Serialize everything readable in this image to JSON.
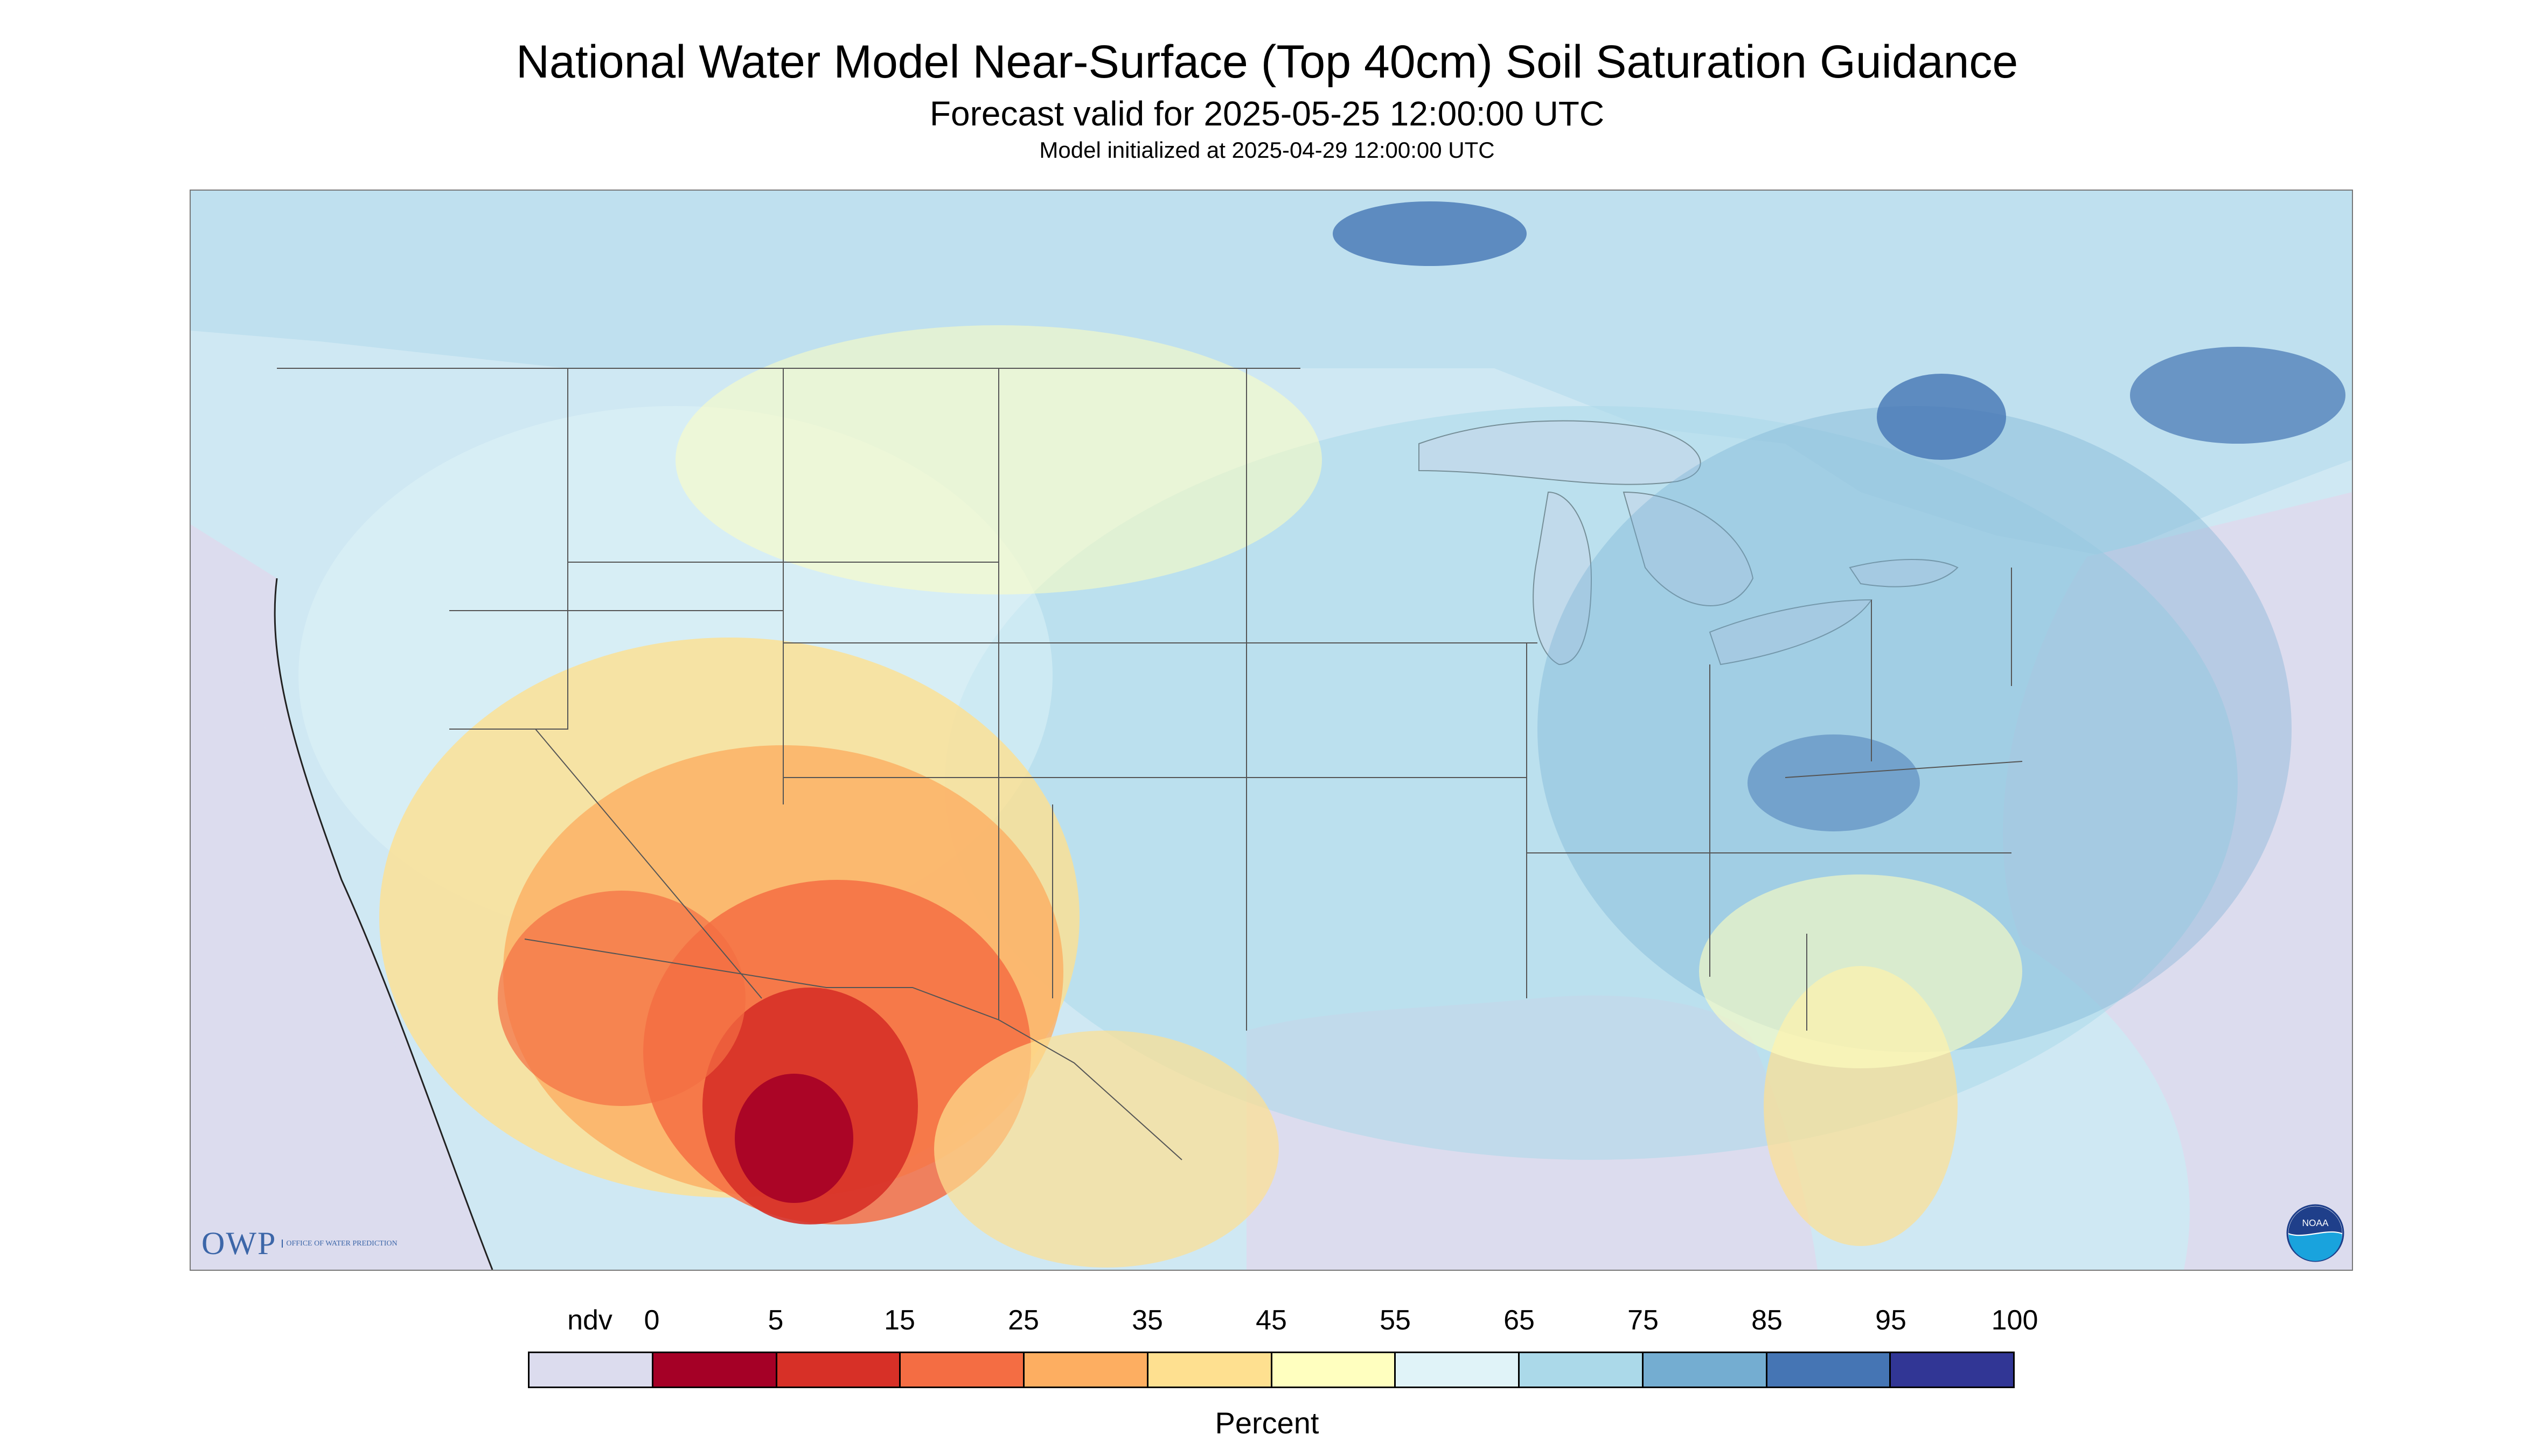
{
  "header": {
    "title": "National Water Model Near-Surface (Top 40cm) Soil Saturation Guidance",
    "subtitle": "Forecast valid for 2025-05-25 12:00:00 UTC",
    "init_line": "Model initialized at 2025-04-29 12:00:00 UTC"
  },
  "map": {
    "region": "CONUS",
    "background_color": "#dcdcee",
    "logos": {
      "owp": {
        "mark": "OWP",
        "subtext": "OFFICE OF WATER PREDICTION"
      },
      "noaa": {
        "mark": "NOAA",
        "icon": "noaa-logo-icon"
      }
    }
  },
  "legend": {
    "unit_label": "Percent",
    "ndv_label": "ndv",
    "tick_labels": [
      "0",
      "5",
      "15",
      "25",
      "35",
      "45",
      "55",
      "65",
      "75",
      "85",
      "95",
      "100"
    ],
    "colors": [
      "#dcdcee",
      "#a50026",
      "#d73027",
      "#f46d43",
      "#fdae61",
      "#fee090",
      "#ffffbf",
      "#e0f3f8",
      "#abd9e9",
      "#74add1",
      "#4575b4",
      "#313695"
    ]
  }
}
